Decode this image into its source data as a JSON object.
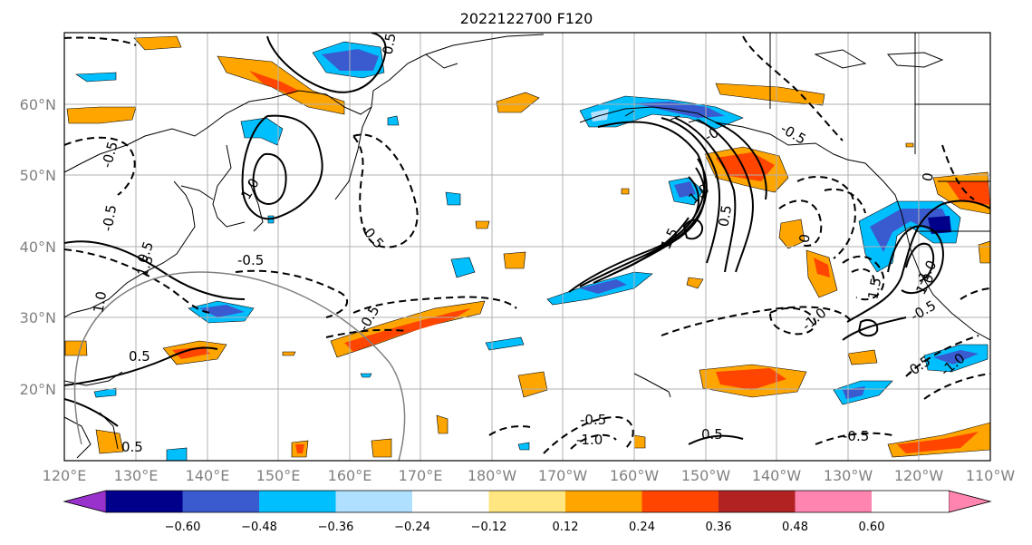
{
  "title": "2022122700 F120",
  "lat_labels": [
    "60°N",
    "50°N",
    "40°N",
    "30°N",
    "20°N"
  ],
  "lon_labels": [
    "120°E",
    "130°E",
    "140°E",
    "150°E",
    "160°E",
    "170°E",
    "180°W",
    "170°W",
    "160°W",
    "150°W",
    "140°W",
    "130°W",
    "120°W",
    "110°W"
  ],
  "colorbar": {
    "ticks": [
      "−0.60",
      "−0.48",
      "−0.36",
      "−0.24",
      "−0.12",
      "0.12",
      "0.24",
      "0.36",
      "0.48",
      "0.60"
    ],
    "colors": [
      "#9932cc",
      "#00008b",
      "#3a5bd0",
      "#00bfff",
      "#b0e0ff",
      "#ffffff",
      "#ffe680",
      "#ffa500",
      "#ff4500",
      "#b22222",
      "#ff85b0"
    ]
  },
  "contour_labels": [
    "-0.5",
    "-0.5",
    "-0.5",
    "-0.5",
    "-0.5",
    "-0.5",
    "-0.5",
    "-0.5",
    "-0.5",
    "-0.5",
    "-1.0",
    "-1.0",
    "-1.0",
    "-1.0",
    "0.5",
    "0.5",
    "0.5",
    "0.5",
    "0.5",
    "0.5",
    "1.0",
    "1.0",
    "1.0",
    "1.0",
    "1.5",
    "1.5",
    "1.5",
    "-0",
    "0",
    "0"
  ]
}
